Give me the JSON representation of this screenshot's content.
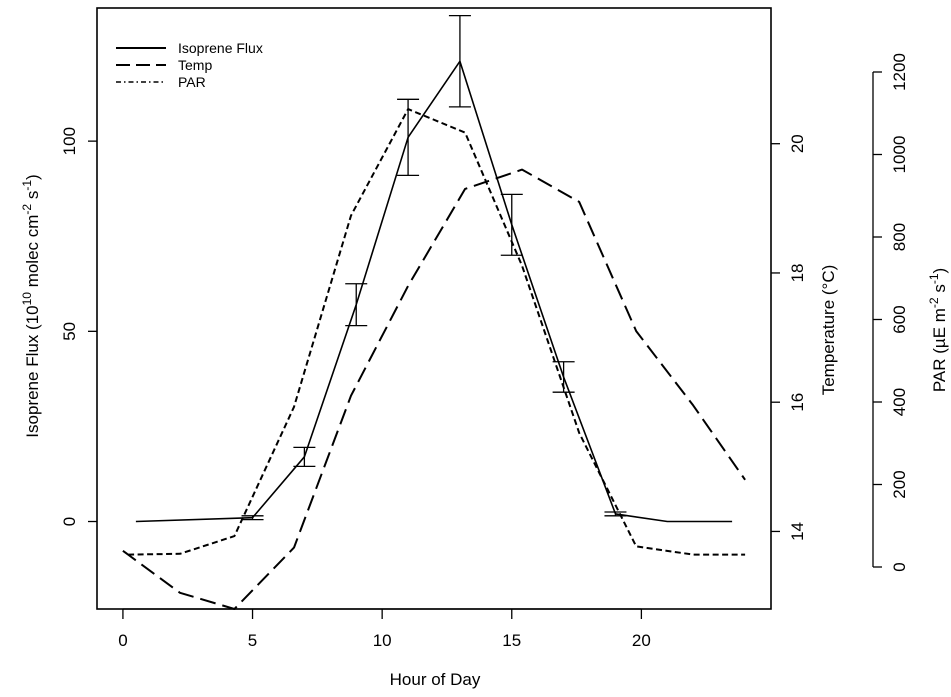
{
  "chart_data": {
    "type": "line",
    "xlabel": "Hour of Day",
    "ylabel_left": "Isoprene Flux (10^10 molec cm^-2 s^-1)",
    "ylabel_temp": "Temperature (°C)",
    "ylabel_par": "PAR (µE m^-2 s^-1)",
    "xlim": [
      -1,
      25
    ],
    "ylim_left": [
      -23,
      135
    ],
    "ylim_temp": [
      12.8,
      22.1
    ],
    "ylim_par": [
      0,
      1200
    ],
    "x_ticks": [
      0,
      5,
      10,
      15,
      20
    ],
    "y_left_ticks": [
      0,
      50,
      100
    ],
    "y_temp_ticks": [
      14,
      16,
      18,
      20
    ],
    "y_par_ticks": [
      0,
      200,
      400,
      600,
      800,
      1000,
      1200
    ],
    "legend_position": "top-left",
    "series": [
      {
        "name": "Isoprene Flux",
        "axis": "left",
        "style": "solid",
        "x": [
          0.5,
          5,
          7,
          9,
          11,
          13,
          15,
          17,
          19,
          21,
          23.5
        ],
        "y": [
          0,
          1,
          17,
          57,
          101,
          121,
          78,
          38,
          2,
          0,
          0
        ],
        "errors": [
          null,
          0.5,
          2.5,
          5.5,
          10,
          12,
          8,
          4,
          0.5,
          null,
          null
        ]
      },
      {
        "name": "Temp",
        "axis": "temp",
        "style": "dashed",
        "x": [
          0,
          2.2,
          4.3,
          6.6,
          8.8,
          11,
          13.2,
          15.4,
          17.6,
          19.8,
          22,
          24
        ],
        "y": [
          13.7,
          13.05,
          12.8,
          13.75,
          16.1,
          17.8,
          19.3,
          19.6,
          19.1,
          17.1,
          15.95,
          14.8
        ]
      },
      {
        "name": "PAR",
        "axis": "par",
        "style": "dotdash",
        "x": [
          0.2,
          2.2,
          4.3,
          6.6,
          8.8,
          11,
          13.2,
          15.4,
          17.6,
          19.8,
          22,
          24
        ],
        "y": [
          30,
          32,
          75,
          388,
          852,
          1110,
          1053,
          730,
          325,
          50,
          30,
          30
        ]
      }
    ]
  }
}
